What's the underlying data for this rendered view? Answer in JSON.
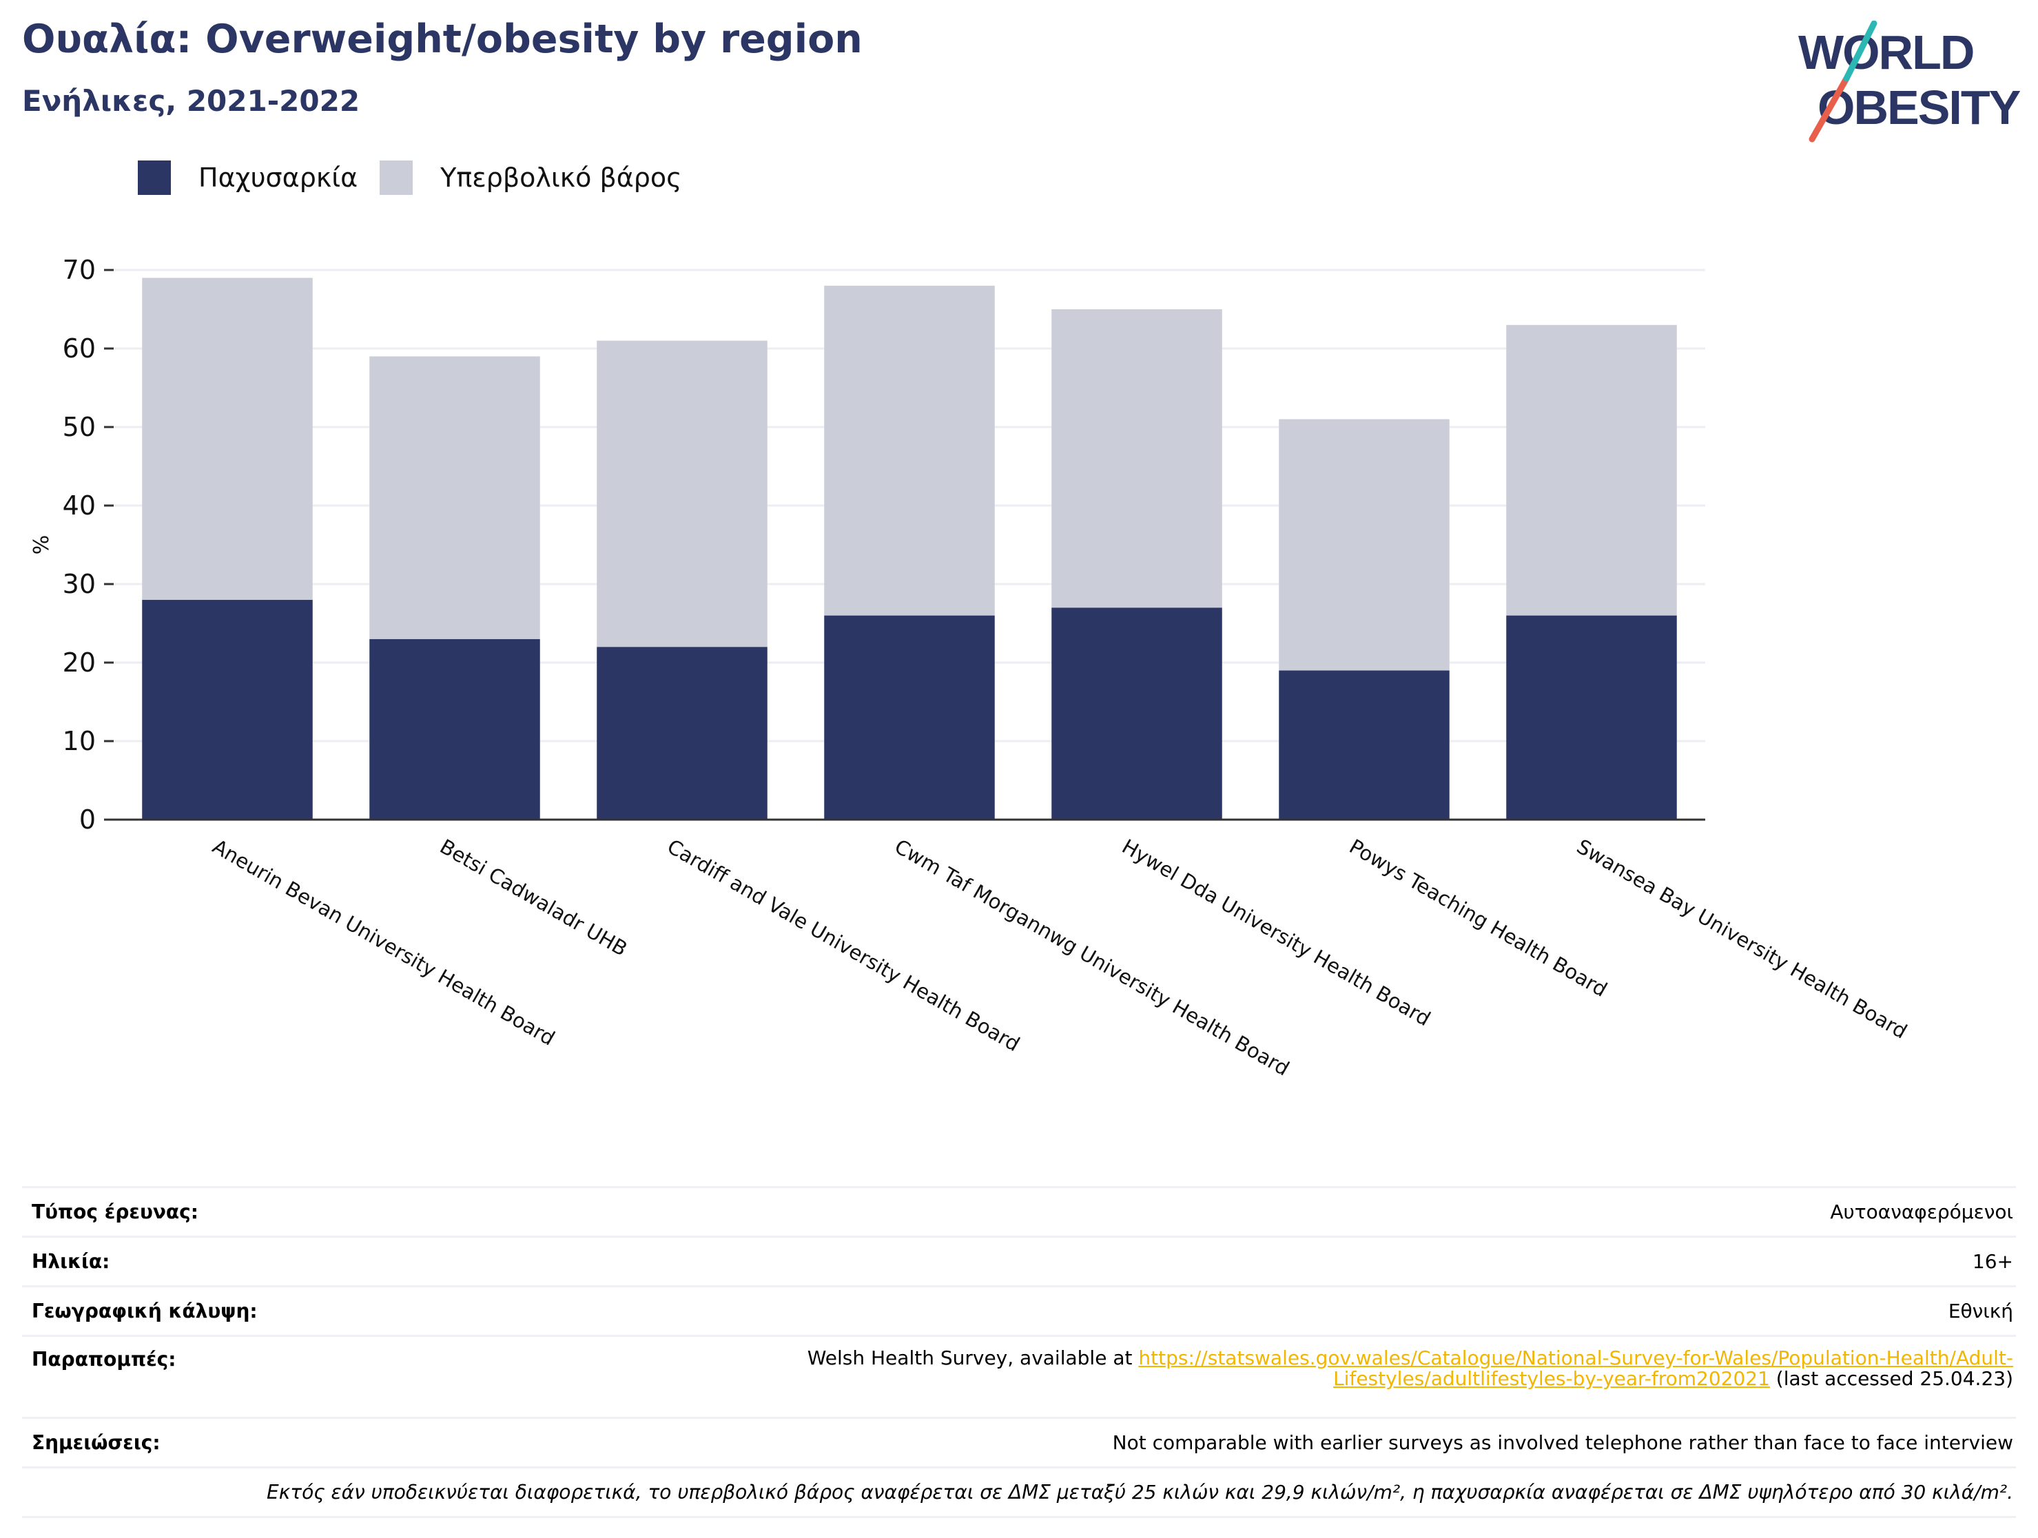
{
  "header": {
    "title": "Ουαλία: Overweight/obesity by region",
    "subtitle": "Ενήλικες, 2021-2022"
  },
  "logo": {
    "line1": "WORLD",
    "line2": "OBESITY"
  },
  "colors": {
    "obesity": "#2b3664",
    "overweight": "#cbcdd9",
    "axis": "#333333",
    "grid": "#eceef3",
    "link": "#f2b600"
  },
  "chart_data": {
    "type": "bar",
    "stacked": true,
    "title": "",
    "xlabel": "",
    "ylabel": "%",
    "ylim": [
      0,
      70
    ],
    "yticks": [
      0,
      10,
      20,
      30,
      40,
      50,
      60,
      70
    ],
    "grid": true,
    "legend_position": "top-left",
    "categories": [
      "Aneurin Bevan University Health Board",
      "Betsi Cadwaladr UHB",
      "Cardiff and Vale University Health Board",
      "Cwm Taf Morgannwg University Health Board",
      "Hywel Dda University Health Board",
      "Powys Teaching Health Board",
      "Swansea Bay University Health Board"
    ],
    "series": [
      {
        "name": "Παχυσαρκία",
        "values": [
          28,
          23,
          22,
          26,
          27,
          19,
          26
        ]
      },
      {
        "name": "Υπερβολικό βάρος",
        "values": [
          41,
          36,
          39,
          42,
          38,
          32,
          37
        ]
      }
    ]
  },
  "info": {
    "survey_type_label": "Τύπος έρευνας:",
    "survey_type_value": "Αυτοαναφερόμενοι",
    "age_label": "Ηλικία:",
    "age_value": "16+",
    "coverage_label": "Γεωγραφική κάλυψη:",
    "coverage_value": "Εθνική",
    "refs_label": "Παραπομπές:",
    "refs_prefix": "Welsh Health Survey, available at ",
    "refs_link_1": "https://statswales.gov.wales/Catalogue/National-Survey-for-Wales/Population-Health/Adult-",
    "refs_link_2": "Lifestyles/adultlifestyles-by-year-from202021",
    "refs_suffix": " (last accessed 25.04.23)",
    "notes_label": "Σημειώσεις:",
    "notes_value": "Not comparable with earlier surveys as involved telephone rather than face to face interview",
    "footnote": "Εκτός εάν υποδεικνύεται διαφορετικά, το υπερβολικό βάρος αναφέρεται σε ΔΜΣ μεταξύ 25 κιλών και 29,9 κιλών/m², η παχυσαρκία αναφέρεται σε ΔΜΣ υψηλότερο από 30 κιλά/m²."
  }
}
